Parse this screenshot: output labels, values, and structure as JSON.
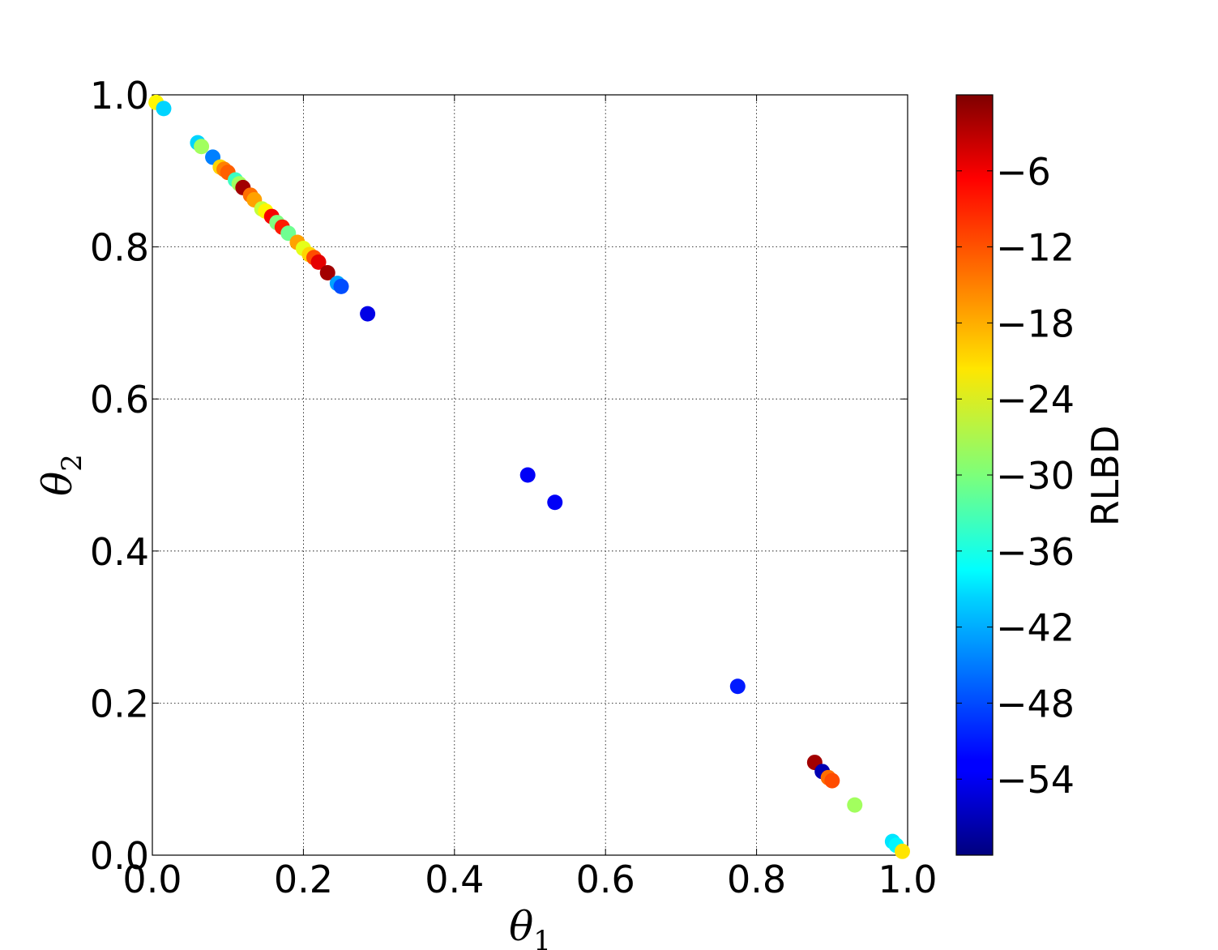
{
  "chart_data": {
    "type": "scatter",
    "title": "",
    "xlabel": {
      "symbol": "θ",
      "subscript": "1"
    },
    "ylabel": {
      "symbol": "θ",
      "subscript": "2"
    },
    "xlim": [
      0.0,
      1.0
    ],
    "ylim": [
      0.0,
      1.0
    ],
    "xticks": [
      0.0,
      0.2,
      0.4,
      0.6,
      0.8,
      1.0
    ],
    "yticks": [
      0.0,
      0.2,
      0.4,
      0.6,
      0.8,
      1.0
    ],
    "xtick_labels": [
      "0.0",
      "0.2",
      "0.4",
      "0.6",
      "0.8",
      "1.0"
    ],
    "ytick_labels": [
      "0.0",
      "0.2",
      "0.4",
      "0.6",
      "0.8",
      "1.0"
    ],
    "grid": true,
    "colorbar": {
      "label": "RLBD",
      "colormap": "jet",
      "range": [
        -60,
        0
      ],
      "ticks": [
        -6,
        -12,
        -18,
        -24,
        -30,
        -36,
        -42,
        -48,
        -54
      ],
      "tick_labels": [
        "−6",
        "−12",
        "−18",
        "−24",
        "−30",
        "−36",
        "−42",
        "−48",
        "−54"
      ]
    },
    "points": [
      {
        "x": 0.005,
        "y": 0.99,
        "c": -22
      },
      {
        "x": 0.015,
        "y": 0.982,
        "c": -40
      },
      {
        "x": 0.06,
        "y": 0.937,
        "c": -40
      },
      {
        "x": 0.065,
        "y": 0.932,
        "c": -28
      },
      {
        "x": 0.08,
        "y": 0.918,
        "c": -45
      },
      {
        "x": 0.09,
        "y": 0.905,
        "c": -20
      },
      {
        "x": 0.095,
        "y": 0.902,
        "c": -15
      },
      {
        "x": 0.1,
        "y": 0.898,
        "c": -13
      },
      {
        "x": 0.11,
        "y": 0.888,
        "c": -34
      },
      {
        "x": 0.115,
        "y": 0.883,
        "c": -28
      },
      {
        "x": 0.12,
        "y": 0.878,
        "c": -2
      },
      {
        "x": 0.13,
        "y": 0.868,
        "c": -14
      },
      {
        "x": 0.135,
        "y": 0.862,
        "c": -17
      },
      {
        "x": 0.145,
        "y": 0.85,
        "c": -26
      },
      {
        "x": 0.15,
        "y": 0.847,
        "c": -22
      },
      {
        "x": 0.158,
        "y": 0.84,
        "c": -7
      },
      {
        "x": 0.165,
        "y": 0.832,
        "c": -30
      },
      {
        "x": 0.172,
        "y": 0.826,
        "c": -9
      },
      {
        "x": 0.18,
        "y": 0.818,
        "c": -31
      },
      {
        "x": 0.192,
        "y": 0.806,
        "c": -17
      },
      {
        "x": 0.2,
        "y": 0.798,
        "c": -24
      },
      {
        "x": 0.208,
        "y": 0.79,
        "c": -20
      },
      {
        "x": 0.214,
        "y": 0.786,
        "c": -12
      },
      {
        "x": 0.22,
        "y": 0.78,
        "c": -6
      },
      {
        "x": 0.232,
        "y": 0.766,
        "c": -2
      },
      {
        "x": 0.245,
        "y": 0.752,
        "c": -43
      },
      {
        "x": 0.25,
        "y": 0.748,
        "c": -48
      },
      {
        "x": 0.285,
        "y": 0.712,
        "c": -54
      },
      {
        "x": 0.497,
        "y": 0.5,
        "c": -53
      },
      {
        "x": 0.533,
        "y": 0.464,
        "c": -53
      },
      {
        "x": 0.775,
        "y": 0.222,
        "c": -51
      },
      {
        "x": 0.877,
        "y": 0.122,
        "c": -2
      },
      {
        "x": 0.887,
        "y": 0.11,
        "c": -57
      },
      {
        "x": 0.895,
        "y": 0.102,
        "c": -14
      },
      {
        "x": 0.9,
        "y": 0.098,
        "c": -12
      },
      {
        "x": 0.93,
        "y": 0.066,
        "c": -28
      },
      {
        "x": 0.98,
        "y": 0.018,
        "c": -39
      },
      {
        "x": 0.985,
        "y": 0.013,
        "c": -38
      },
      {
        "x": 0.993,
        "y": 0.005,
        "c": -21
      }
    ]
  }
}
